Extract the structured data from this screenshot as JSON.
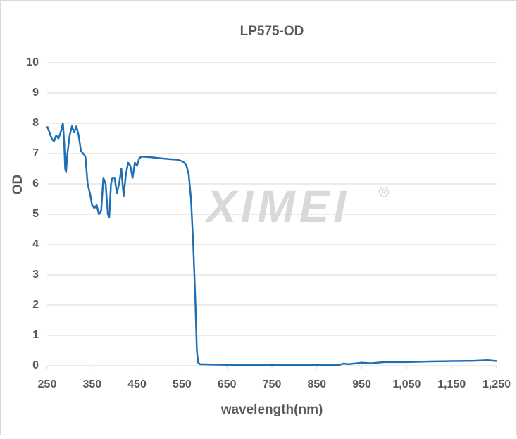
{
  "chart_data": {
    "type": "line",
    "title": "LP575-OD",
    "x_label": "wavelength(nm)",
    "y_label": "OD",
    "watermark": "XIMEI",
    "watermark_mark": "®",
    "x": [
      250,
      255,
      260,
      265,
      270,
      275,
      280,
      285,
      288,
      290,
      292,
      295,
      300,
      305,
      310,
      315,
      320,
      325,
      330,
      335,
      340,
      345,
      350,
      355,
      360,
      365,
      370,
      375,
      380,
      385,
      388,
      392,
      395,
      400,
      405,
      410,
      415,
      420,
      425,
      430,
      435,
      440,
      445,
      450,
      455,
      460,
      480,
      500,
      520,
      540,
      550,
      555,
      560,
      565,
      570,
      575,
      580,
      583,
      586,
      590,
      650,
      750,
      850,
      900,
      910,
      920,
      950,
      970,
      1000,
      1050,
      1100,
      1150,
      1200,
      1230,
      1250
    ],
    "series": [
      {
        "name": "LP575-OD",
        "color": "#1f6fb5",
        "values": [
          7.9,
          7.7,
          7.5,
          7.4,
          7.6,
          7.5,
          7.7,
          8.0,
          7.3,
          6.5,
          6.4,
          7.0,
          7.6,
          7.9,
          7.7,
          7.9,
          7.6,
          7.1,
          7.0,
          6.9,
          6.0,
          5.7,
          5.3,
          5.2,
          5.3,
          5.0,
          5.1,
          6.2,
          6.0,
          5.0,
          4.9,
          6.0,
          6.2,
          6.2,
          5.7,
          6.0,
          6.5,
          5.6,
          6.3,
          6.7,
          6.6,
          6.2,
          6.7,
          6.6,
          6.85,
          6.9,
          6.88,
          6.85,
          6.82,
          6.8,
          6.75,
          6.7,
          6.6,
          6.3,
          5.5,
          4.0,
          2.0,
          0.5,
          0.1,
          0.05,
          0.03,
          0.02,
          0.02,
          0.03,
          0.07,
          0.05,
          0.1,
          0.08,
          0.12,
          0.12,
          0.14,
          0.15,
          0.16,
          0.18,
          0.15
        ]
      }
    ],
    "xlim": [
      250,
      1250
    ],
    "xticks": [
      250,
      350,
      450,
      550,
      650,
      750,
      850,
      950,
      {
        "value": 1050,
        "label": "1,050"
      },
      {
        "value": 1150,
        "label": "1,150"
      },
      {
        "value": 1250,
        "label": "1,250"
      }
    ],
    "ylim": [
      0,
      10
    ],
    "yticks": [
      0,
      1,
      2,
      3,
      4,
      5,
      6,
      7,
      8,
      9,
      10
    ],
    "grid": true
  }
}
